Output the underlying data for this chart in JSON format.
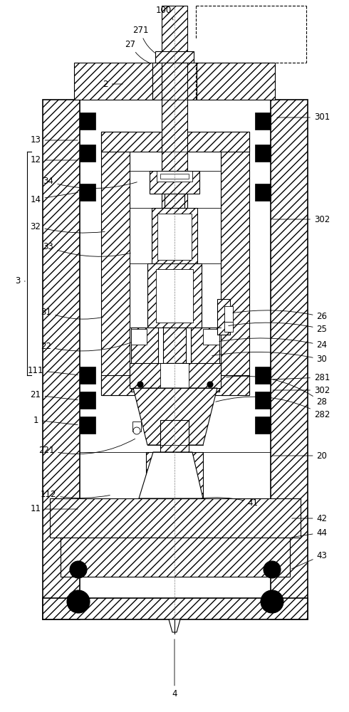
{
  "figsize": [
    4.9,
    10.0
  ],
  "dpi": 100,
  "bg_color": "#ffffff",
  "line_color": "#000000",
  "outer_lw": 1.2,
  "inner_lw": 0.8,
  "thin_lw": 0.6
}
